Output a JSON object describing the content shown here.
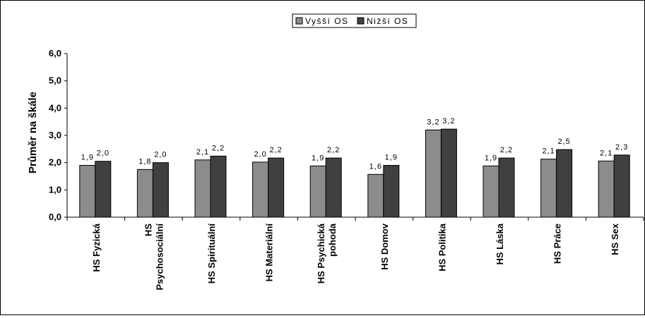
{
  "chart_data": {
    "type": "bar",
    "title": "",
    "xlabel": "",
    "ylabel": "Průměr na škále",
    "ylim": [
      0,
      6
    ],
    "yticks": [
      "0,0",
      "1,0",
      "2,0",
      "3,0",
      "4,0",
      "5,0",
      "6,0"
    ],
    "grid": false,
    "legend_position": "top",
    "categories": [
      [
        "HS  Fyzická"
      ],
      [
        "HS",
        "Psychosociální"
      ],
      [
        "HS  Spirituální"
      ],
      [
        "HS Materiální"
      ],
      [
        "HS Psychická",
        "pohoda"
      ],
      [
        "HS Domov"
      ],
      [
        "HS Politika"
      ],
      [
        "HS  Láska"
      ],
      [
        "HS  Práce"
      ],
      [
        "HS  Sex"
      ]
    ],
    "series": [
      {
        "name": "Vyšší OS",
        "color": "#8c8c8c",
        "values": [
          1.9,
          1.75,
          2.1,
          2.02,
          1.88,
          1.57,
          3.2,
          1.88,
          2.13,
          2.06
        ],
        "labels": [
          "1,9",
          "1,8",
          "2,1",
          "2,0",
          "1,9",
          "1,6",
          "3,2",
          "1,9",
          "2,1",
          "2,1"
        ]
      },
      {
        "name": "Nižší OS",
        "color": "#404040",
        "values": [
          2.05,
          2.0,
          2.24,
          2.17,
          2.17,
          1.9,
          3.23,
          2.17,
          2.48,
          2.28
        ],
        "labels": [
          "2,0",
          "2,0",
          "2,2",
          "2,2",
          "2,2",
          "1,9",
          "3,2",
          "2,2",
          "2,5",
          "2,3"
        ]
      }
    ]
  }
}
